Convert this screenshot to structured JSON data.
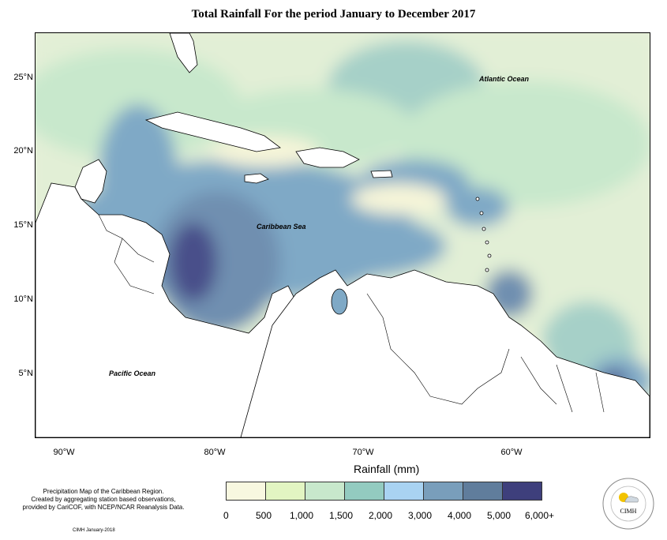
{
  "title": "Total Rainfall For the period January to December 2017",
  "map": {
    "lat_labels": [
      "25°N",
      "20°N",
      "15°N",
      "10°N",
      "5°N"
    ],
    "lon_labels": [
      "90°W",
      "80°W",
      "70°W",
      "60°W"
    ],
    "ocean_labels": [
      "Atlantic Ocean",
      "Caribbean Sea",
      "Pacific Ocean"
    ]
  },
  "legend": {
    "title": "Rainfall (mm)",
    "tick_labels": [
      "0",
      "500",
      "1,000",
      "1,500",
      "2,000",
      "3,000",
      "4,000",
      "5,000",
      "6,000+"
    ],
    "colors": [
      "#f8f8e0",
      "#e2f5c2",
      "#c8e8cc",
      "#93cbc0",
      "#a9d3f2",
      "#799ebb",
      "#607d9c",
      "#3e3f7c"
    ]
  },
  "note": {
    "line1": "Precipitation Map of the Caribbean Region.",
    "line2": "Created by aggregating station based observations,",
    "line3": "provided by CariCOF, with NCEP/NCAR Reanalysis Data."
  },
  "credit": "CIMH January-2018",
  "logo_text": "CIMH"
}
